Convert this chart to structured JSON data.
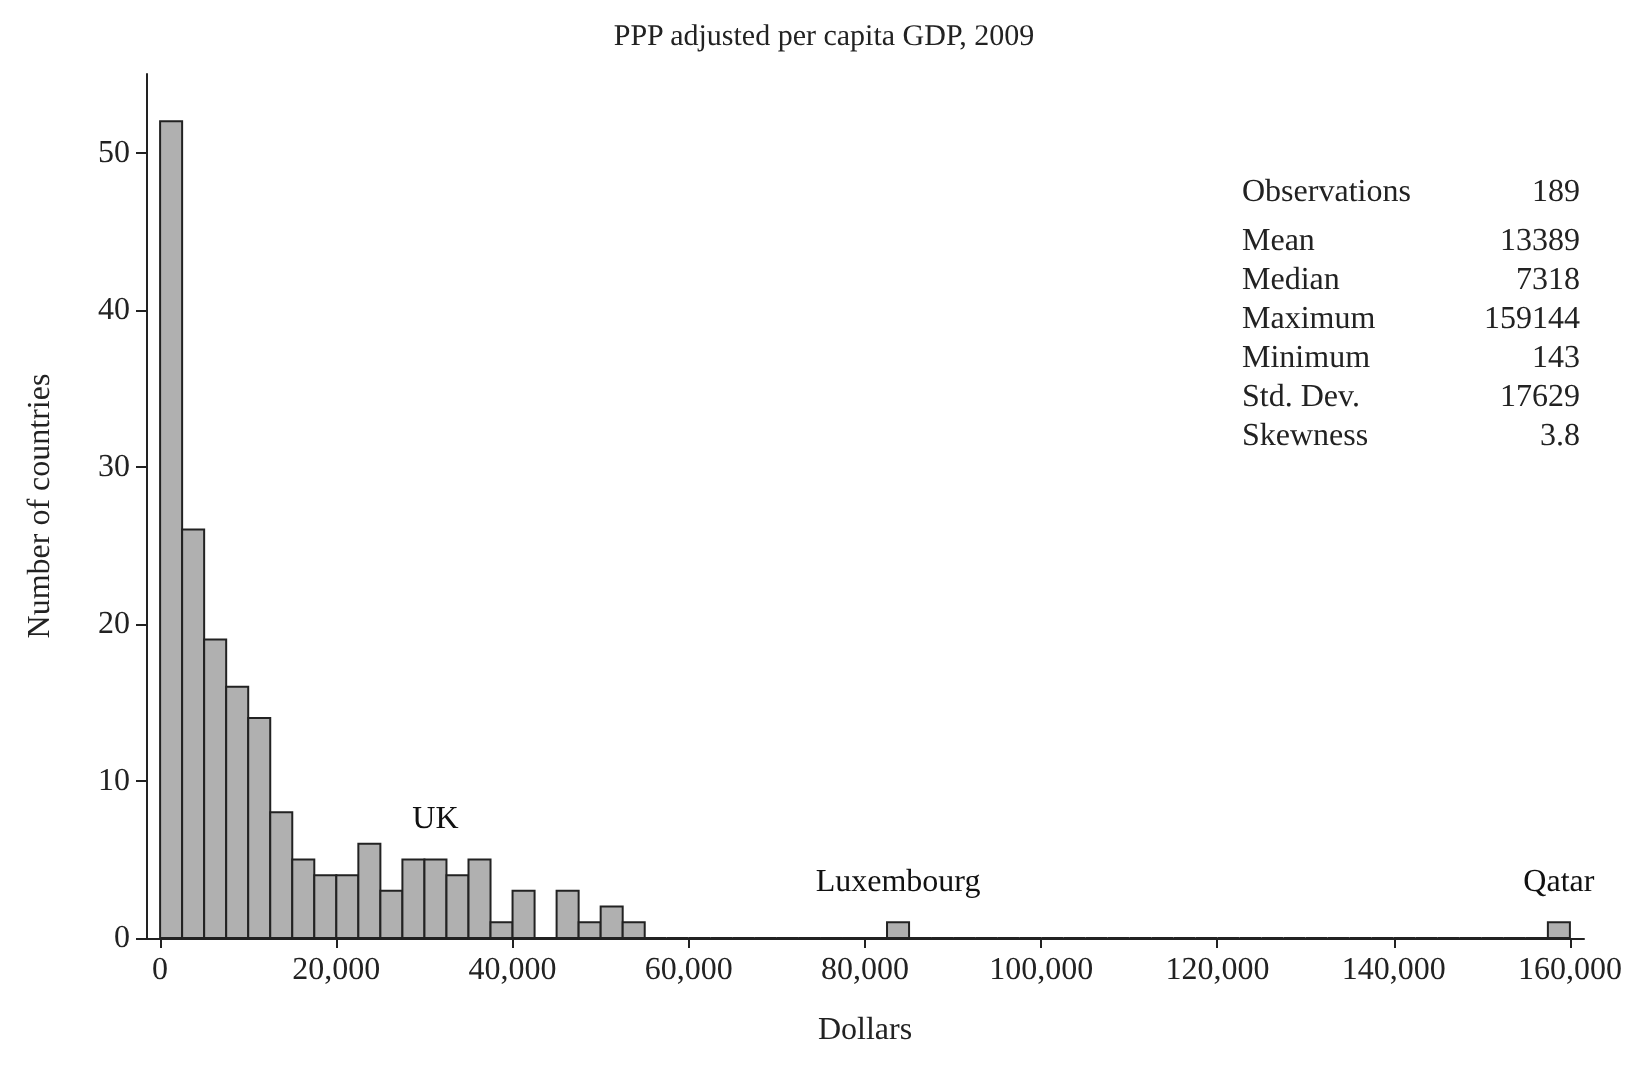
{
  "chart_data": {
    "type": "histogram",
    "title": "PPP adjusted per capita GDP, 2009",
    "xlabel": "Dollars",
    "ylabel": "Number of countries",
    "color": "#b0b0b0",
    "bins": [
      0,
      2500,
      5000,
      7500,
      10000,
      12500,
      15000,
      17500,
      20000,
      22500,
      25000,
      27500,
      30000,
      32500,
      35000,
      37500,
      40000,
      42500,
      45000,
      47500,
      50000,
      52500,
      55000,
      57500,
      60000,
      62500,
      65000,
      67500,
      70000,
      72500,
      75000,
      77500,
      80000,
      82500,
      85000,
      87500,
      90000,
      92500,
      95000,
      97500,
      100000,
      102500,
      105000,
      107500,
      110000,
      112500,
      115000,
      117500,
      120000,
      122500,
      125000,
      127500,
      130000,
      132500,
      135000,
      137500,
      140000,
      142500,
      145000,
      147500,
      150000,
      152500,
      155000,
      157500,
      160000
    ],
    "values": [
      52,
      26,
      19,
      16,
      14,
      8,
      5,
      4,
      4,
      6,
      3,
      5,
      5,
      4,
      5,
      1,
      3,
      0,
      3,
      1,
      2,
      1,
      0,
      0,
      0,
      0,
      0,
      0,
      0,
      0,
      0,
      0,
      0,
      1,
      0,
      0,
      0,
      0,
      0,
      0,
      0,
      0,
      0,
      0,
      0,
      0,
      0,
      0,
      0,
      0,
      0,
      0,
      0,
      0,
      0,
      0,
      0,
      0,
      0,
      0,
      0,
      0,
      0,
      1
    ],
    "xlim": [
      -1600,
      161600
    ],
    "ylim": [
      0,
      55
    ],
    "xticks": [
      {
        "value": 0,
        "label": "0"
      },
      {
        "value": 20000,
        "label": "20,000"
      },
      {
        "value": 40000,
        "label": "40,000"
      },
      {
        "value": 60000,
        "label": "60,000"
      },
      {
        "value": 80000,
        "label": "80,000"
      },
      {
        "value": 100000,
        "label": "100,000"
      },
      {
        "value": 120000,
        "label": "120,000"
      },
      {
        "value": 140000,
        "label": "140,000"
      },
      {
        "value": 160000,
        "label": "160,000"
      }
    ],
    "yticks": [
      0,
      10,
      20,
      30,
      40,
      50
    ],
    "grid": false,
    "annotations": [
      {
        "text": "UK",
        "x": 31250,
        "y": 5
      },
      {
        "text": "Luxembourg",
        "x": 83750,
        "y": 1
      },
      {
        "text": "Qatar",
        "x": 158750,
        "y": 1
      },
      "Observations 189",
      "Mean 13389",
      "Median 7318",
      "Maximum 159144",
      "Minimum 143",
      "Std. Dev. 17629",
      "Skewness 3.8"
    ]
  }
}
